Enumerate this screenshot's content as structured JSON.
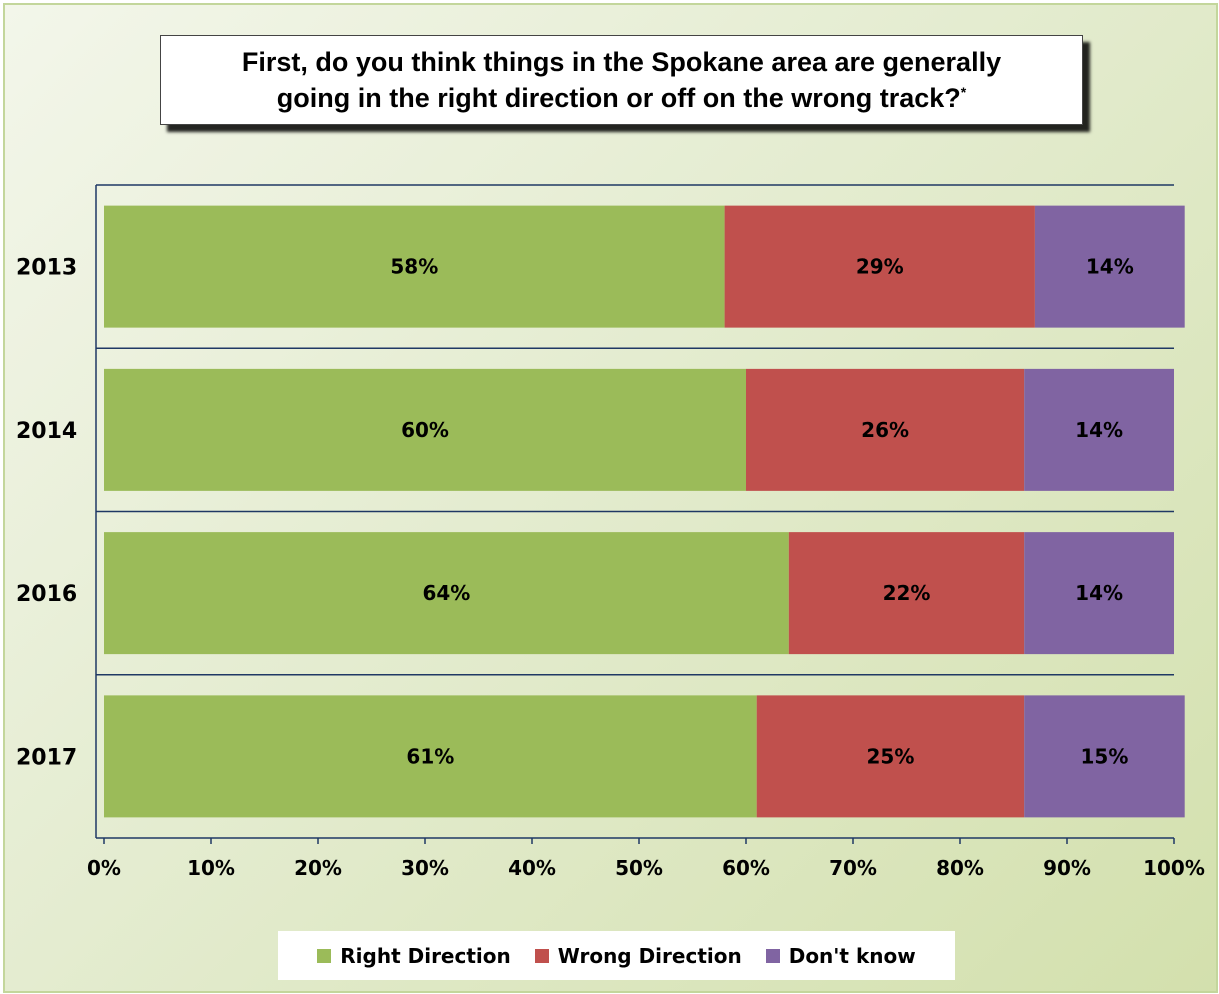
{
  "title": {
    "line1": "First, do you think things in the Spokane area are generally",
    "line2": "going in the right direction or off on the wrong track?",
    "footnote_mark": "*"
  },
  "colors": {
    "right_direction": "#9bbb59",
    "wrong_direction": "#c0504d",
    "dont_know": "#8064a2",
    "axis": "#1f3864"
  },
  "legend": {
    "position": "bottom",
    "items": [
      {
        "label": "Right Direction",
        "color": "#9bbb59"
      },
      {
        "label": "Wrong Direction",
        "color": "#c0504d"
      },
      {
        "label": "Don't know",
        "color": "#8064a2"
      }
    ]
  },
  "chart_data": {
    "type": "bar",
    "orientation": "horizontal",
    "stacked": true,
    "categories": [
      "2013",
      "2014",
      "2016",
      "2017"
    ],
    "series": [
      {
        "name": "Right Direction",
        "color": "#9bbb59",
        "values": [
          58,
          60,
          64,
          61
        ],
        "labels": [
          "58%",
          "60%",
          "64%",
          "61%"
        ]
      },
      {
        "name": "Wrong Direction",
        "color": "#c0504d",
        "values": [
          29,
          26,
          22,
          25
        ],
        "labels": [
          "29%",
          "26%",
          "22%",
          "25%"
        ]
      },
      {
        "name": "Don't know",
        "color": "#8064a2",
        "values": [
          14,
          14,
          14,
          15
        ],
        "labels": [
          "14%",
          "14%",
          "14%",
          "15%"
        ]
      }
    ],
    "xlim": [
      0,
      100
    ],
    "xticks": [
      "0%",
      "10%",
      "20%",
      "30%",
      "40%",
      "50%",
      "60%",
      "70%",
      "80%",
      "90%",
      "100%"
    ],
    "grid": "horizontal category separators",
    "legend": "bottom"
  }
}
